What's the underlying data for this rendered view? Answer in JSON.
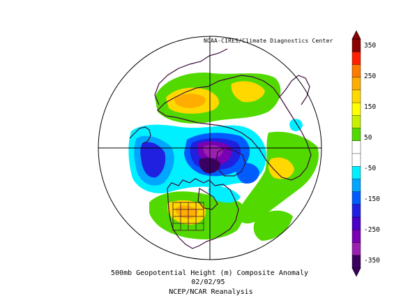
{
  "credit": "NOAA-CIRES/Climate Diagnostics Center",
  "caption": {
    "line1": "500mb Geopotential Height (m) Composite Anomaly",
    "line2": "02/02/95",
    "line3": "NCEP/NCAR Reanalysis"
  },
  "colorbar": {
    "labels": [
      "350",
      "250",
      "150",
      "50",
      "-50",
      "-150",
      "-250",
      "-350"
    ],
    "colors": [
      "#8b0000",
      "#ff2000",
      "#ff7a00",
      "#ffae00",
      "#ffd800",
      "#ffff00",
      "#c6f000",
      "#52d900",
      "#ffffff",
      "#ffffff",
      "#00f0ff",
      "#00a6ff",
      "#005cff",
      "#2020e0",
      "#4a00c8",
      "#7a00b4",
      "#9a20b0",
      "#3a0060"
    ]
  },
  "projection": "north-polar-stereographic",
  "colors": {
    "coastline": "#3a0a3a",
    "boundary": "#3a0a3a",
    "outline": "#000000",
    "us_states": "#3a0a3a"
  }
}
